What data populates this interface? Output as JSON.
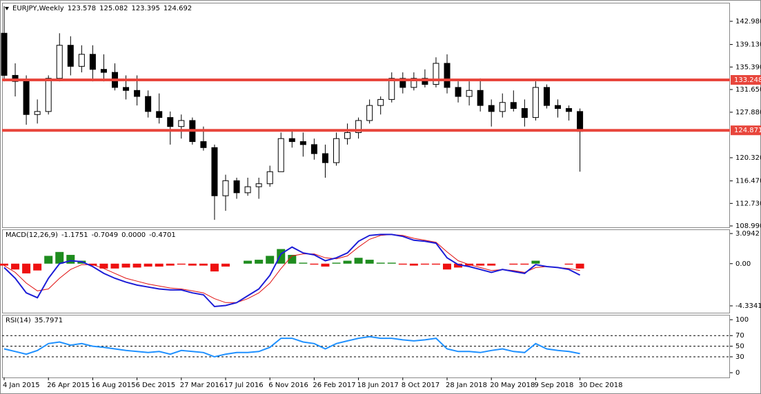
{
  "chart_data": [
    {
      "type": "candlestick",
      "title": "EURJPY,Weekly",
      "header_values": [
        123.578,
        125.082,
        123.395,
        124.692
      ],
      "categories": [
        "4 Jan 2015",
        null,
        null,
        null,
        "26 Apr 2015",
        null,
        null,
        null,
        "16 Aug 2015",
        null,
        null,
        null,
        "6 Dec 2015",
        null,
        null,
        null,
        "27 Mar 2016",
        null,
        null,
        null,
        "17 Jul 2016",
        null,
        null,
        null,
        "6 Nov 2016",
        null,
        null,
        null,
        "26 Feb 2017",
        null,
        null,
        null,
        "18 Jun 2017",
        null,
        null,
        null,
        "8 Oct 2017",
        null,
        null,
        null,
        "28 Jan 2018",
        null,
        null,
        null,
        "20 May 2018",
        null,
        null,
        null,
        "9 Sep 2018",
        null,
        null,
        null,
        "30 Dec 2018"
      ],
      "open": [
        141,
        134,
        133,
        127.5,
        128,
        133.5,
        139,
        135.5,
        137.5,
        135,
        134.5,
        132,
        131.5,
        130.5,
        128,
        127,
        125.5,
        126.5,
        123,
        122,
        114,
        116.5,
        114.5,
        115.5,
        116,
        118,
        123.5,
        123,
        122.5,
        121,
        119.5,
        123.5,
        124.5,
        126.5,
        129,
        130,
        133.5,
        132,
        133.5,
        132.5,
        136,
        132,
        130.5,
        131.5,
        129,
        128,
        129.5,
        128.5,
        127,
        132,
        129,
        128.5,
        128
      ],
      "high": [
        145.5,
        136,
        134,
        130,
        134,
        141,
        140.5,
        139,
        139,
        137.5,
        136,
        134,
        134,
        131.5,
        131,
        128,
        127.5,
        127,
        125.5,
        122.5,
        117.5,
        117,
        117,
        117,
        119,
        124.5,
        125,
        124.5,
        123.5,
        122.5,
        124.5,
        126,
        127,
        130,
        130.5,
        134.5,
        134.5,
        134.5,
        135,
        137,
        137.5,
        133,
        133,
        133.5,
        130,
        131,
        131.5,
        130,
        133,
        132.5,
        130,
        129,
        128.5
      ],
      "low": [
        133,
        130.5,
        125.8,
        126,
        127.5,
        133,
        134,
        134.5,
        133,
        133,
        131.5,
        130,
        129,
        127,
        126,
        122.5,
        123.5,
        122.5,
        121.5,
        110,
        111.5,
        113.5,
        114,
        113.5,
        115.5,
        118,
        122,
        120.5,
        120,
        117,
        119,
        122.5,
        123.5,
        126,
        127.5,
        129.5,
        131,
        131.5,
        132,
        132,
        131,
        129.5,
        129,
        128,
        125.5,
        127,
        128,
        125.5,
        126.5,
        128.5,
        127,
        126.5,
        118
      ],
      "close": [
        134,
        133,
        127.5,
        128,
        133.5,
        139,
        135.5,
        137.5,
        135,
        134.5,
        132,
        131.5,
        130.5,
        128,
        127,
        125.5,
        126.5,
        123,
        122,
        114,
        116.5,
        114.5,
        115.5,
        116,
        118,
        123.5,
        123,
        122.5,
        121,
        119.5,
        123.5,
        124.5,
        126.5,
        129,
        130,
        133.5,
        132,
        133.5,
        132.5,
        136,
        132,
        130.5,
        131.5,
        129,
        128,
        129.5,
        128.5,
        127,
        132,
        129,
        128.5,
        128,
        124.7
      ],
      "up_color": "#ffffff",
      "down_color": "#000000",
      "wick_color": "#000000",
      "ylim": [
        108.76,
        145.95
      ],
      "yticks": [
        {
          "value": 142.98,
          "label": "142.980"
        },
        {
          "value": 139.13,
          "label": "139.130"
        },
        {
          "value": 135.39,
          "label": "135.390"
        },
        {
          "value": 131.65,
          "label": "131.650"
        },
        {
          "value": 127.88,
          "label": "127.880"
        },
        {
          "value": 120.32,
          "label": "120.320"
        },
        {
          "value": 116.47,
          "label": "116.470"
        },
        {
          "value": 112.73,
          "label": "112.730"
        },
        {
          "value": 108.99,
          "label": "108.990"
        }
      ],
      "hlines": [
        133.248,
        124.871
      ],
      "hline_color": "#e8463c"
    },
    {
      "type": "macd",
      "title": "MACD(12,26,9)",
      "header_values": [
        -1.1751,
        -0.7049,
        {
          "value": 0,
          "label": "0.0000"
        },
        -0.4701
      ],
      "histogram": {
        "pos_color": "#1e8c1e",
        "neg_color": "#ee1111",
        "values": [
          -0.2,
          -0.6,
          -1.0,
          -0.7,
          0.8,
          1.2,
          0.9,
          0.3,
          -0.2,
          -0.5,
          -0.5,
          -0.4,
          -0.4,
          -0.3,
          -0.3,
          -0.2,
          -0.1,
          -0.2,
          -0.2,
          -0.8,
          -0.3,
          0,
          0.3,
          0.4,
          0.8,
          1.5,
          0.9,
          0.1,
          -0.1,
          -0.3,
          0.1,
          0.3,
          0.6,
          0.4,
          0.1,
          0.1,
          -0.1,
          -0.2,
          -0.1,
          -0.1,
          -0.6,
          -0.4,
          -0.2,
          -0.2,
          -0.2,
          0,
          -0.1,
          -0.1,
          0.3,
          0,
          0,
          -0.1,
          -0.5
        ]
      },
      "macd": {
        "color": "#1c1cd6",
        "values": [
          -0.4,
          -1.5,
          -3,
          -3.5,
          -1.5,
          0,
          0.3,
          0.2,
          -0.3,
          -1.0,
          -1.5,
          -1.9,
          -2.2,
          -2.4,
          -2.6,
          -2.7,
          -2.7,
          -3.0,
          -3.2,
          -4.4,
          -4.3,
          -4.0,
          -3.3,
          -2.6,
          -1.2,
          1.0,
          1.7,
          1.1,
          0.9,
          0.3,
          0.6,
          1.1,
          2.3,
          2.9,
          3.0,
          3.0,
          2.8,
          2.4,
          2.3,
          2.1,
          0.6,
          -0.1,
          -0.3,
          -0.6,
          -0.9,
          -0.6,
          -0.8,
          -1.0,
          -0.1,
          -0.3,
          -0.4,
          -0.6,
          -1.18
        ]
      },
      "signal": {
        "color": "#e01010",
        "values": [
          -0.2,
          -0.9,
          -2.0,
          -2.8,
          -2.6,
          -1.5,
          -0.6,
          -0.1,
          -0.1,
          -0.5,
          -1.0,
          -1.5,
          -1.8,
          -2.1,
          -2.3,
          -2.5,
          -2.6,
          -2.8,
          -3.0,
          -3.6,
          -4.0,
          -4.0,
          -3.6,
          -3.0,
          -2.0,
          -0.5,
          0.8,
          1.0,
          1.0,
          0.6,
          0.5,
          0.8,
          1.7,
          2.5,
          2.9,
          3.0,
          2.9,
          2.6,
          2.4,
          2.2,
          1.2,
          0.3,
          -0.1,
          -0.4,
          -0.7,
          -0.6,
          -0.7,
          -0.9,
          -0.4,
          -0.3,
          -0.4,
          -0.5,
          -0.7
        ]
      },
      "ylim": [
        -5.04,
        3.45
      ],
      "yticks": [
        3.0942,
        {
          "value": 0,
          "label": "0.00"
        },
        -4.3341
      ]
    },
    {
      "type": "line",
      "title": "RSI(14)",
      "header_values": [
        35.7971
      ],
      "color": "#1e90ff",
      "values": [
        45,
        40,
        35,
        42,
        55,
        58,
        52,
        55,
        50,
        48,
        45,
        42,
        40,
        38,
        40,
        35,
        42,
        40,
        38,
        30,
        35,
        38,
        38,
        40,
        48,
        65,
        65,
        58,
        55,
        45,
        55,
        60,
        65,
        68,
        65,
        65,
        62,
        60,
        62,
        65,
        45,
        40,
        40,
        38,
        42,
        45,
        40,
        38,
        55,
        45,
        42,
        40,
        36
      ],
      "ylim": [
        -9,
        108
      ],
      "yticks": [
        100,
        70,
        50,
        30,
        0
      ],
      "levels": [
        70,
        50,
        30
      ]
    }
  ]
}
